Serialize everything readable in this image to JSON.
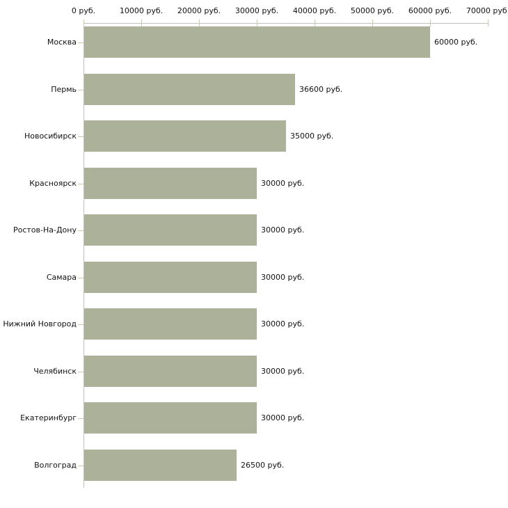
{
  "chart_data": {
    "type": "bar",
    "orientation": "horizontal",
    "title": "",
    "xlabel": "",
    "ylabel": "",
    "unit": "руб.",
    "categories": [
      "Москва",
      "Пермь",
      "Новосибирск",
      "Красноярск",
      "Ростов-На-Дону",
      "Самара",
      "Нижний Новгород",
      "Челябинск",
      "Екатеринбург",
      "Волгоград"
    ],
    "values": [
      60000,
      36600,
      35000,
      30000,
      30000,
      30000,
      30000,
      30000,
      30000,
      26500
    ],
    "value_labels": [
      "60000 руб.",
      "36600 руб.",
      "35000 руб.",
      "30000 руб.",
      "30000 руб.",
      "30000 руб.",
      "30000 руб.",
      "30000 руб.",
      "30000 руб.",
      "26500 руб."
    ],
    "x_ticks": [
      0,
      10000,
      20000,
      30000,
      40000,
      50000,
      60000,
      70000
    ],
    "x_tick_labels": [
      "0 руб.",
      "10000 руб.",
      "20000 руб.",
      "30000 руб.",
      "40000 руб.",
      "50000 руб.",
      "60000 руб.",
      "70000 руб."
    ],
    "xlim": [
      0,
      70000
    ],
    "x_axis_position": "top",
    "grid": "off",
    "legend": "none",
    "colors": {
      "bar": "#acb199",
      "axis_line": "#c0c0c0",
      "tick_mark": "#c9c9a1",
      "text": "#111111",
      "background": "#ffffff"
    }
  }
}
